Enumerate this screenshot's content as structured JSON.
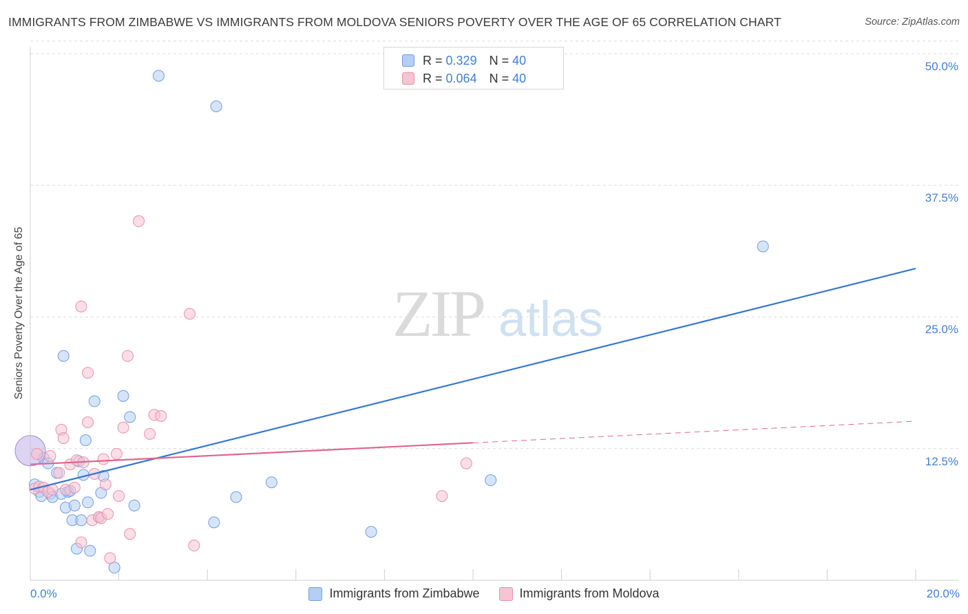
{
  "chart_data": {
    "type": "scatter",
    "title": "IMMIGRANTS FROM ZIMBABWE VS IMMIGRANTS FROM MOLDOVA SENIORS POVERTY OVER THE AGE OF 65 CORRELATION CHART",
    "source": "Source: ZipAtlas.com",
    "ylabel": "Seniors Poverty Over the Age of 65",
    "xlim": [
      0,
      20
    ],
    "ylim": [
      0,
      50
    ],
    "x_tick_labels": {
      "left": "0.0%",
      "right": "20.0%"
    },
    "y_ticks": [
      {
        "value": 50,
        "label": "50.0%"
      },
      {
        "value": 37.5,
        "label": "37.5%"
      },
      {
        "value": 25,
        "label": "25.0%"
      },
      {
        "value": 12.5,
        "label": "12.5%"
      }
    ],
    "watermark": "ZIPatlas",
    "legend_stats": [
      {
        "series": "Immigrants from Zimbabwe",
        "r_label": "R =",
        "r_value": "0.329",
        "n_label": "N =",
        "n_value": "40"
      },
      {
        "series": "Immigrants from Moldova",
        "r_label": "R =",
        "r_value": "0.064",
        "n_label": "N =",
        "n_value": "40"
      }
    ],
    "series": [
      {
        "name": "Immigrants from Zimbabwe",
        "fill": "#b4cef5",
        "stroke": "#6f9ee0",
        "line_color": "#3575d3",
        "trend": {
          "x0": 0,
          "y0": 8.6,
          "x1": 20,
          "y1": 29.6,
          "solid_until": 20
        },
        "points": [
          [
            0.1,
            9.1
          ],
          [
            0.2,
            8.4
          ],
          [
            0.25,
            8.0
          ],
          [
            0.3,
            11.6
          ],
          [
            0.4,
            11.1
          ],
          [
            0.45,
            8.2
          ],
          [
            0.5,
            7.9
          ],
          [
            0.6,
            10.2
          ],
          [
            0.7,
            8.2
          ],
          [
            0.75,
            21.3
          ],
          [
            0.8,
            6.9
          ],
          [
            0.85,
            8.4
          ],
          [
            0.9,
            8.5
          ],
          [
            0.95,
            5.7
          ],
          [
            1.0,
            7.1
          ],
          [
            1.05,
            3.0
          ],
          [
            1.1,
            11.3
          ],
          [
            1.15,
            5.7
          ],
          [
            1.2,
            10.0
          ],
          [
            1.25,
            13.3
          ],
          [
            1.3,
            7.4
          ],
          [
            1.35,
            2.8
          ],
          [
            1.45,
            17.0
          ],
          [
            1.55,
            6.0
          ],
          [
            1.6,
            8.3
          ],
          [
            1.65,
            9.9
          ],
          [
            1.9,
            1.2
          ],
          [
            2.1,
            17.5
          ],
          [
            2.25,
            15.5
          ],
          [
            2.35,
            7.1
          ],
          [
            2.9,
            47.9
          ],
          [
            4.2,
            45.0
          ],
          [
            4.15,
            5.5
          ],
          [
            4.65,
            7.9
          ],
          [
            5.45,
            9.3
          ],
          [
            7.7,
            4.6
          ],
          [
            10.4,
            9.5
          ],
          [
            16.55,
            31.7
          ]
        ],
        "big_point": [
          0.0,
          12.3
        ]
      },
      {
        "name": "Immigrants from Moldova",
        "fill": "#f8c3d2",
        "stroke": "#e890aa",
        "line_color": "#e0658c",
        "trend": {
          "x0": 0,
          "y0": 11.0,
          "x1": 20,
          "y1": 15.1,
          "solid_until": 10
        },
        "points": [
          [
            0.1,
            8.7
          ],
          [
            0.2,
            8.9
          ],
          [
            0.3,
            8.8
          ],
          [
            0.4,
            8.4
          ],
          [
            0.45,
            11.8
          ],
          [
            0.5,
            8.6
          ],
          [
            0.65,
            10.2
          ],
          [
            0.7,
            14.3
          ],
          [
            0.75,
            13.5
          ],
          [
            0.8,
            8.6
          ],
          [
            0.9,
            11.0
          ],
          [
            1.0,
            8.8
          ],
          [
            1.05,
            11.4
          ],
          [
            1.15,
            3.6
          ],
          [
            1.15,
            26.0
          ],
          [
            1.2,
            11.2
          ],
          [
            1.3,
            15.0
          ],
          [
            1.3,
            19.7
          ],
          [
            1.4,
            5.7
          ],
          [
            1.45,
            10.1
          ],
          [
            1.55,
            6.0
          ],
          [
            1.6,
            5.9
          ],
          [
            1.65,
            11.5
          ],
          [
            1.7,
            9.1
          ],
          [
            1.75,
            6.3
          ],
          [
            1.8,
            2.1
          ],
          [
            1.95,
            12.0
          ],
          [
            2.0,
            8.0
          ],
          [
            2.1,
            14.5
          ],
          [
            2.2,
            21.3
          ],
          [
            2.25,
            4.4
          ],
          [
            2.45,
            34.1
          ],
          [
            2.7,
            13.9
          ],
          [
            2.8,
            15.7
          ],
          [
            2.95,
            15.6
          ],
          [
            3.6,
            25.3
          ],
          [
            3.7,
            3.3
          ],
          [
            9.3,
            8.0
          ],
          [
            9.85,
            11.1
          ],
          [
            0.15,
            12.0
          ]
        ]
      }
    ]
  }
}
